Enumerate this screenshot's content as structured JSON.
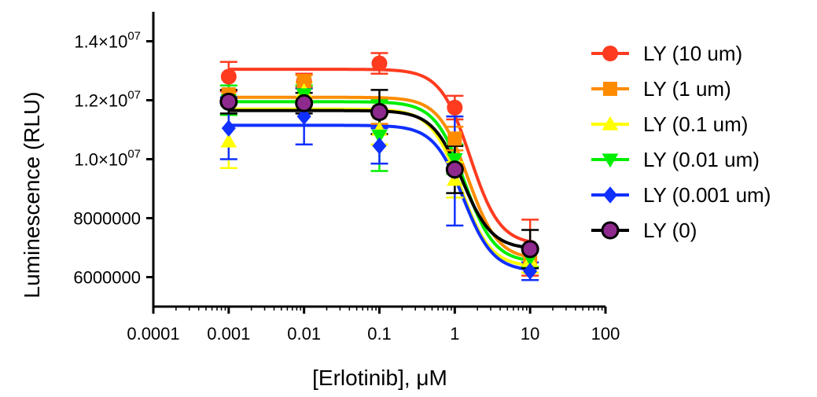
{
  "chart_data": {
    "type": "scatter",
    "xlabel": "[Erlotinib], μM",
    "ylabel": "Luminescence (RLU)",
    "x_scale": "log",
    "xlim": [
      0.0001,
      100
    ],
    "ylim": [
      5000000,
      15000000
    ],
    "x_ticks": [
      {
        "value": 0.0001,
        "label": "0.0001"
      },
      {
        "value": 0.001,
        "label": "0.001"
      },
      {
        "value": 0.01,
        "label": "0.01"
      },
      {
        "value": 0.1,
        "label": "0.1"
      },
      {
        "value": 1,
        "label": "1"
      },
      {
        "value": 10,
        "label": "10"
      },
      {
        "value": 100,
        "label": "100"
      }
    ],
    "y_ticks": [
      {
        "value": 6000000,
        "label": "6000000",
        "exp": ""
      },
      {
        "value": 8000000,
        "label": "8000000",
        "exp": ""
      },
      {
        "value": 10000000,
        "label": "1.0×10",
        "exp": "07"
      },
      {
        "value": 12000000,
        "label": "1.2×10",
        "exp": "07"
      },
      {
        "value": 14000000,
        "label": "1.4×10",
        "exp": "07"
      }
    ],
    "x": [
      0.001,
      0.01,
      0.1,
      1,
      10
    ],
    "legend_position": "right",
    "series": [
      {
        "name": "LY (10 um)",
        "color": "#ff3b1f",
        "marker": "circle",
        "values": [
          12800000,
          12650000,
          13250000,
          11750000,
          7000000
        ],
        "errors": [
          500000,
          250000,
          350000,
          400000,
          950000
        ],
        "fit": {
          "top": 13050000,
          "bottom": 7100000,
          "ec50": 1.6,
          "hill": 2.2
        }
      },
      {
        "name": "LY (1 um)",
        "color": "#ff8c00",
        "marker": "square",
        "values": [
          12200000,
          12650000,
          11600000,
          10700000,
          6650000
        ],
        "errors": [
          300000,
          200000,
          400000,
          400000,
          300000
        ],
        "fit": {
          "top": 12100000,
          "bottom": 6600000,
          "ec50": 1.5,
          "hill": 2.2
        }
      },
      {
        "name": "LY (0.1 um)",
        "color": "#ffff00",
        "marker": "triangle-up",
        "values": [
          10600000,
          12300000,
          11000000,
          9300000,
          6550000
        ],
        "errors": [
          900000,
          300000,
          500000,
          600000,
          400000
        ],
        "fit": {
          "top": 11700000,
          "bottom": 6350000,
          "ec50": 1.2,
          "hill": 2.2
        }
      },
      {
        "name": "LY (0.01 um)",
        "color": "#00ee00",
        "marker": "triangle-down",
        "values": [
          12000000,
          12200000,
          10800000,
          10000000,
          6650000
        ],
        "errors": [
          500000,
          300000,
          1200000,
          500000,
          300000
        ],
        "fit": {
          "top": 11950000,
          "bottom": 6500000,
          "ec50": 1.35,
          "hill": 2.2
        }
      },
      {
        "name": "LY (0.001 um)",
        "color": "#1030ff",
        "marker": "diamond",
        "values": [
          11050000,
          11450000,
          10450000,
          9600000,
          6200000
        ],
        "errors": [
          1050000,
          950000,
          600000,
          1850000,
          300000
        ],
        "fit": {
          "top": 11150000,
          "bottom": 6200000,
          "ec50": 1.3,
          "hill": 2.2
        }
      },
      {
        "name": "LY (0)",
        "color": "#000000",
        "fill": "#8e2a8e",
        "marker": "circle",
        "values": [
          11950000,
          11900000,
          11600000,
          9650000,
          6950000
        ],
        "errors": [
          400000,
          350000,
          750000,
          800000,
          650000
        ],
        "fit": {
          "top": 11650000,
          "bottom": 6950000,
          "ec50": 1.25,
          "hill": 2.2
        }
      }
    ]
  }
}
